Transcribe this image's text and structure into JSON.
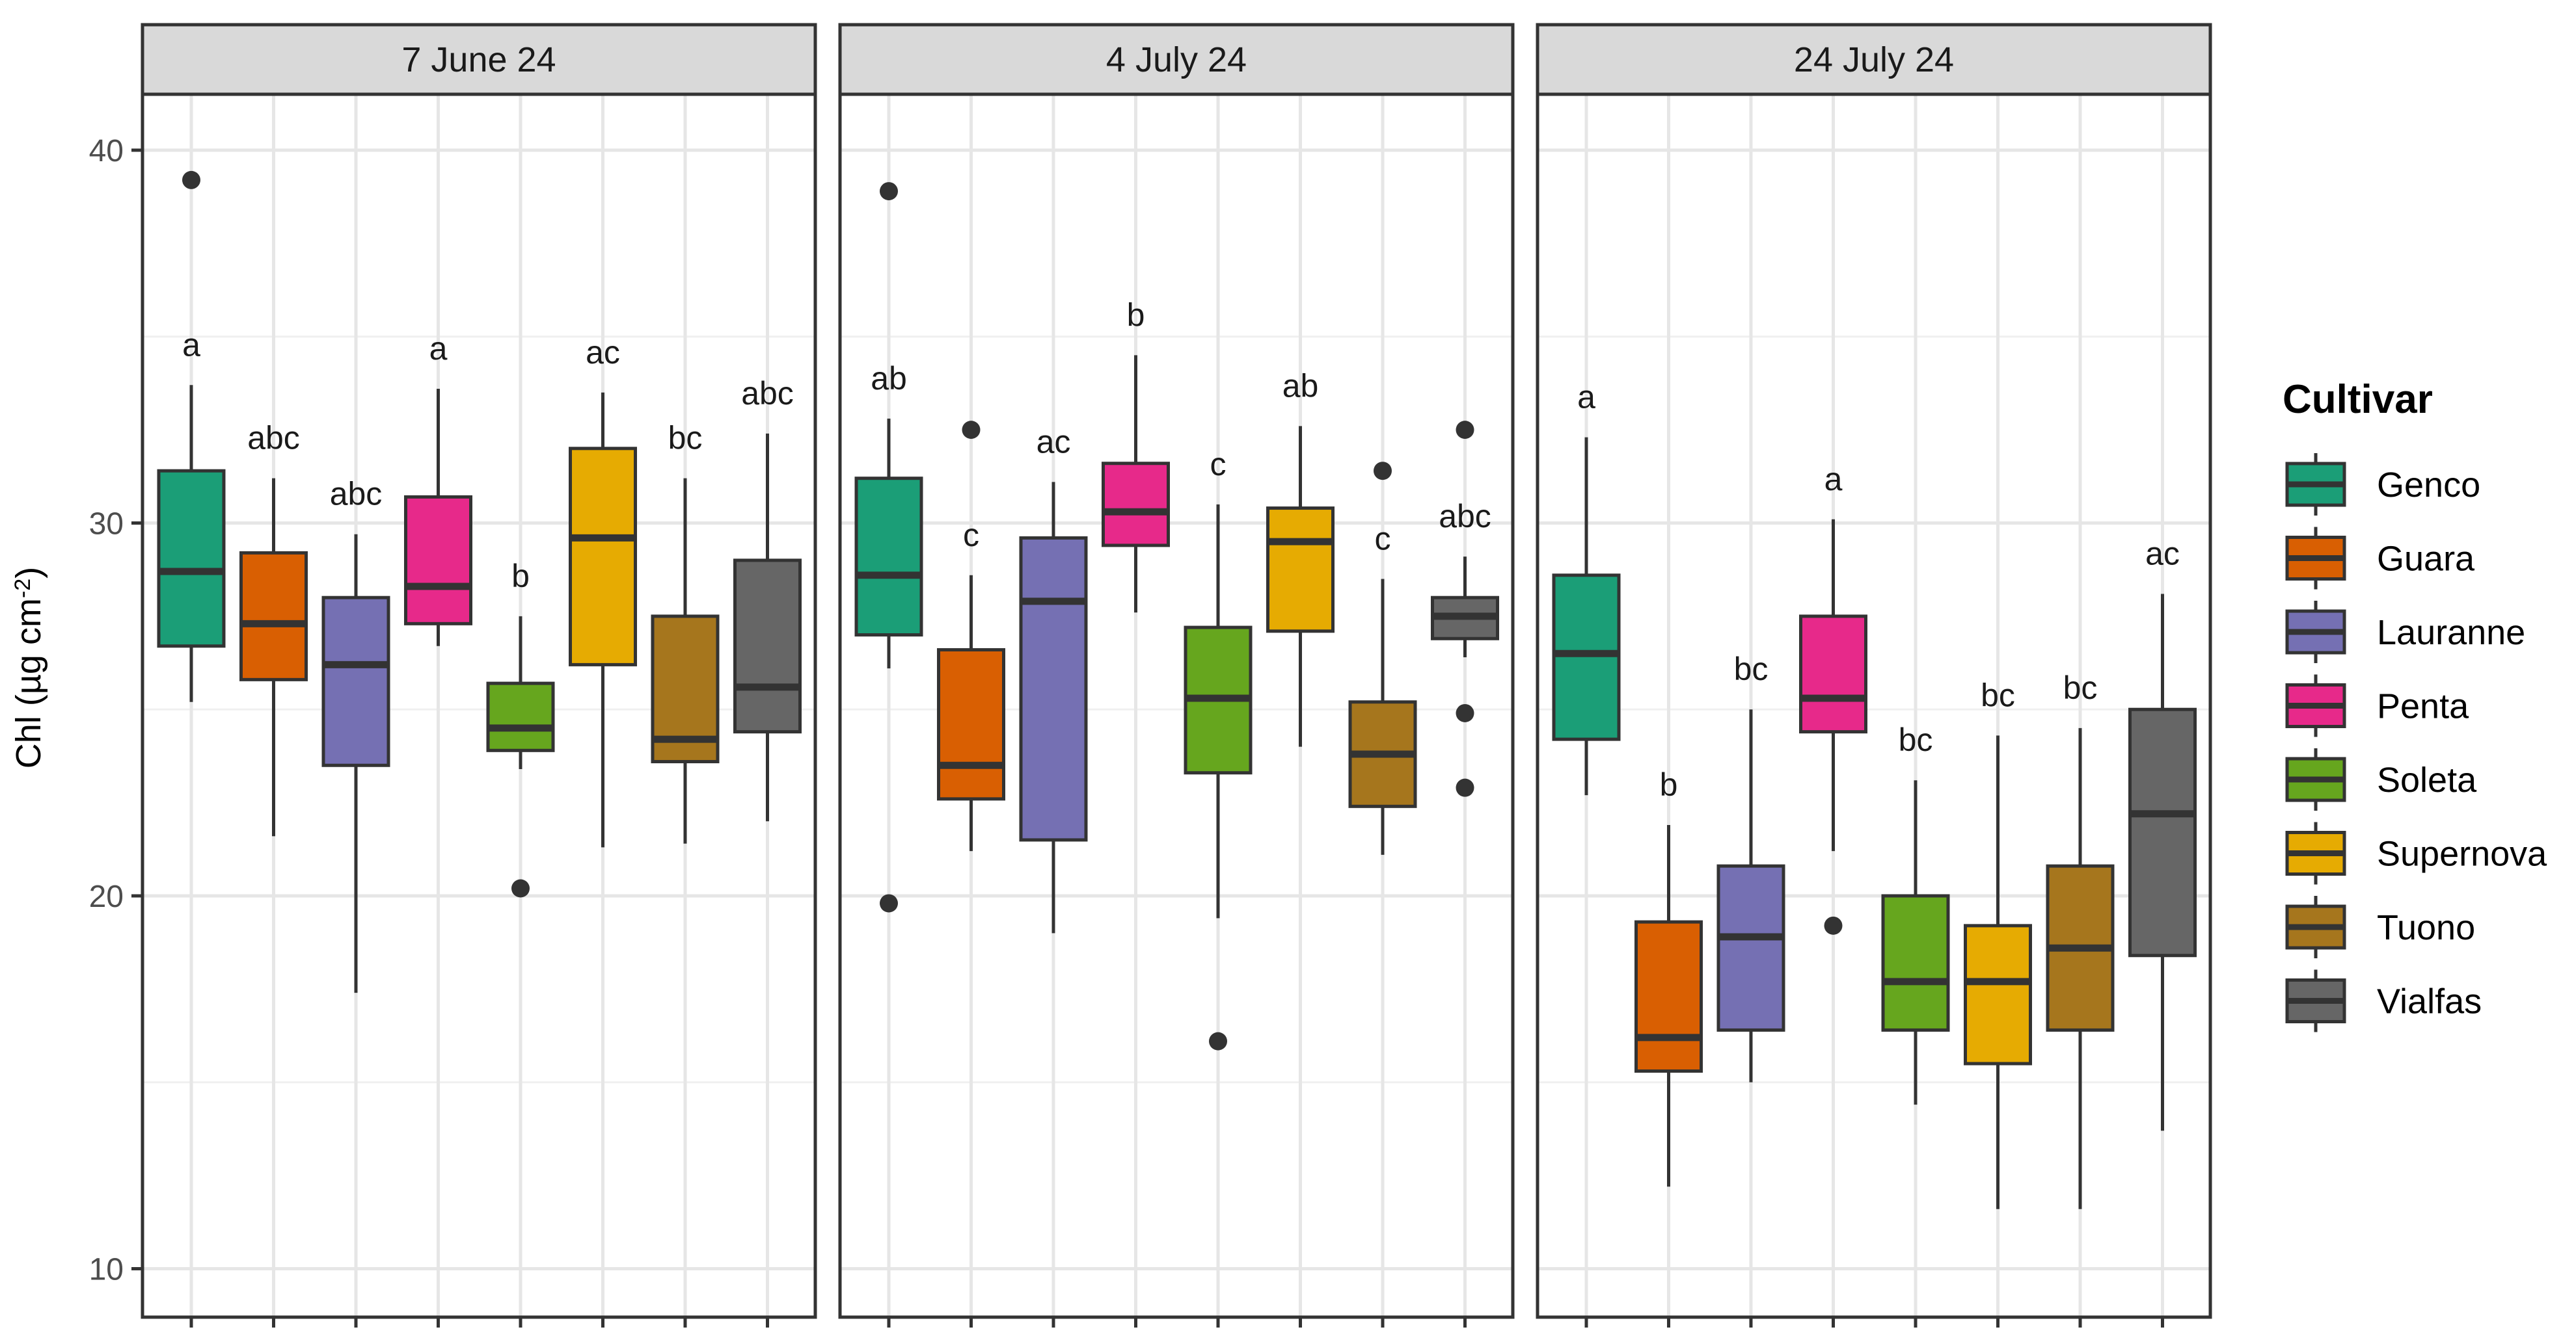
{
  "chart_data": {
    "type": "boxplot",
    "ylabel_main": "Chl (µg cm",
    "ylabel_sup": "-2",
    "ylabel_end": ")",
    "ylim": [
      8.7,
      41.5
    ],
    "yticks": [
      10,
      20,
      30,
      40
    ],
    "legend": {
      "title": "Cultivar",
      "position": "right",
      "cultivars": [
        "Genco",
        "Guara",
        "Lauranne",
        "Penta",
        "Soleta",
        "Supernova",
        "Tuono",
        "Vialfas"
      ]
    },
    "colors": [
      "#1b9e77",
      "#d95f02",
      "#7570b3",
      "#e7298a",
      "#66a61e",
      "#e6ab02",
      "#a6761d",
      "#666666"
    ],
    "panels": [
      {
        "title": "7 June 24",
        "boxes": [
          {
            "cultivar": "Genco",
            "whisker_low": 25.2,
            "q1": 26.7,
            "median": 28.7,
            "q3": 31.4,
            "whisker_high": 33.7,
            "outliers": [
              39.2
            ],
            "letter": "a"
          },
          {
            "cultivar": "Guara",
            "whisker_low": 21.6,
            "q1": 25.8,
            "median": 27.3,
            "q3": 29.2,
            "whisker_high": 31.2,
            "outliers": [],
            "letter": "abc"
          },
          {
            "cultivar": "Lauranne",
            "whisker_low": 17.4,
            "q1": 23.5,
            "median": 26.2,
            "q3": 28.0,
            "whisker_high": 29.7,
            "outliers": [],
            "letter": "abc"
          },
          {
            "cultivar": "Penta",
            "whisker_low": 26.7,
            "q1": 27.3,
            "median": 28.3,
            "q3": 30.7,
            "whisker_high": 33.6,
            "outliers": [],
            "letter": "a"
          },
          {
            "cultivar": "Soleta",
            "whisker_low": 23.4,
            "q1": 23.9,
            "median": 24.5,
            "q3": 25.7,
            "whisker_high": 27.5,
            "outliers": [
              20.2
            ],
            "letter": "b"
          },
          {
            "cultivar": "Supernova",
            "whisker_low": 21.3,
            "q1": 26.2,
            "median": 29.6,
            "q3": 32.0,
            "whisker_high": 33.5,
            "outliers": [],
            "letter": "ac"
          },
          {
            "cultivar": "Tuono",
            "whisker_low": 21.4,
            "q1": 23.6,
            "median": 24.2,
            "q3": 27.5,
            "whisker_high": 31.2,
            "outliers": [],
            "letter": "bc"
          },
          {
            "cultivar": "Vialfas",
            "whisker_low": 22.0,
            "q1": 24.4,
            "median": 25.6,
            "q3": 29.0,
            "whisker_high": 32.4,
            "outliers": [],
            "letter": "abc"
          }
        ]
      },
      {
        "title": "4 July 24",
        "boxes": [
          {
            "cultivar": "Genco",
            "whisker_low": 26.1,
            "q1": 27.0,
            "median": 28.6,
            "q3": 31.2,
            "whisker_high": 32.8,
            "outliers": [
              38.9,
              19.8
            ],
            "letter": "ab"
          },
          {
            "cultivar": "Guara",
            "whisker_low": 21.2,
            "q1": 22.6,
            "median": 23.5,
            "q3": 26.6,
            "whisker_high": 28.6,
            "outliers": [
              32.5
            ],
            "letter": "c"
          },
          {
            "cultivar": "Lauranne",
            "whisker_low": 19.0,
            "q1": 21.5,
            "median": 27.9,
            "q3": 29.6,
            "whisker_high": 31.1,
            "outliers": [],
            "letter": "ac"
          },
          {
            "cultivar": "Penta",
            "whisker_low": 27.6,
            "q1": 29.4,
            "median": 30.3,
            "q3": 31.6,
            "whisker_high": 34.5,
            "outliers": [],
            "letter": "b"
          },
          {
            "cultivar": "Soleta",
            "whisker_low": 19.4,
            "q1": 23.3,
            "median": 25.3,
            "q3": 27.2,
            "whisker_high": 30.5,
            "outliers": [
              16.1
            ],
            "letter": "c"
          },
          {
            "cultivar": "Supernova",
            "whisker_low": 24.0,
            "q1": 27.1,
            "median": 29.5,
            "q3": 30.4,
            "whisker_high": 32.6,
            "outliers": [],
            "letter": "ab"
          },
          {
            "cultivar": "Tuono",
            "whisker_low": 21.1,
            "q1": 22.4,
            "median": 23.8,
            "q3": 25.2,
            "whisker_high": 28.5,
            "outliers": [
              31.4
            ],
            "letter": "c"
          },
          {
            "cultivar": "Vialfas",
            "whisker_low": 26.4,
            "q1": 26.9,
            "median": 27.5,
            "q3": 28.0,
            "whisker_high": 29.1,
            "outliers": [
              32.5,
              24.9,
              22.9
            ],
            "letter": "abc"
          }
        ]
      },
      {
        "title": "24 July 24",
        "boxes": [
          {
            "cultivar": "Genco",
            "whisker_low": 22.7,
            "q1": 24.2,
            "median": 26.5,
            "q3": 28.6,
            "whisker_high": 32.3,
            "outliers": [],
            "letter": "a"
          },
          {
            "cultivar": "Guara",
            "whisker_low": 12.2,
            "q1": 15.3,
            "median": 16.2,
            "q3": 19.3,
            "whisker_high": 21.9,
            "outliers": [],
            "letter": "b"
          },
          {
            "cultivar": "Lauranne",
            "whisker_low": 15.0,
            "q1": 16.4,
            "median": 18.9,
            "q3": 20.8,
            "whisker_high": 25.0,
            "outliers": [],
            "letter": "bc"
          },
          {
            "cultivar": "Penta",
            "whisker_low": 21.2,
            "q1": 24.4,
            "median": 25.3,
            "q3": 27.5,
            "whisker_high": 30.1,
            "outliers": [
              19.2
            ],
            "letter": "a"
          },
          {
            "cultivar": "Soleta",
            "whisker_low": 14.4,
            "q1": 16.4,
            "median": 17.7,
            "q3": 20.0,
            "whisker_high": 23.1,
            "outliers": [],
            "letter": "bc"
          },
          {
            "cultivar": "Supernova",
            "whisker_low": 11.6,
            "q1": 15.5,
            "median": 17.7,
            "q3": 19.2,
            "whisker_high": 24.3,
            "outliers": [],
            "letter": "bc"
          },
          {
            "cultivar": "Tuono",
            "whisker_low": 11.6,
            "q1": 16.4,
            "median": 18.6,
            "q3": 20.8,
            "whisker_high": 24.5,
            "outliers": [],
            "letter": "bc"
          },
          {
            "cultivar": "Vialfas",
            "whisker_low": 13.7,
            "q1": 18.4,
            "median": 22.2,
            "q3": 25.0,
            "whisker_high": 28.1,
            "outliers": [],
            "letter": "ac"
          }
        ]
      }
    ]
  }
}
